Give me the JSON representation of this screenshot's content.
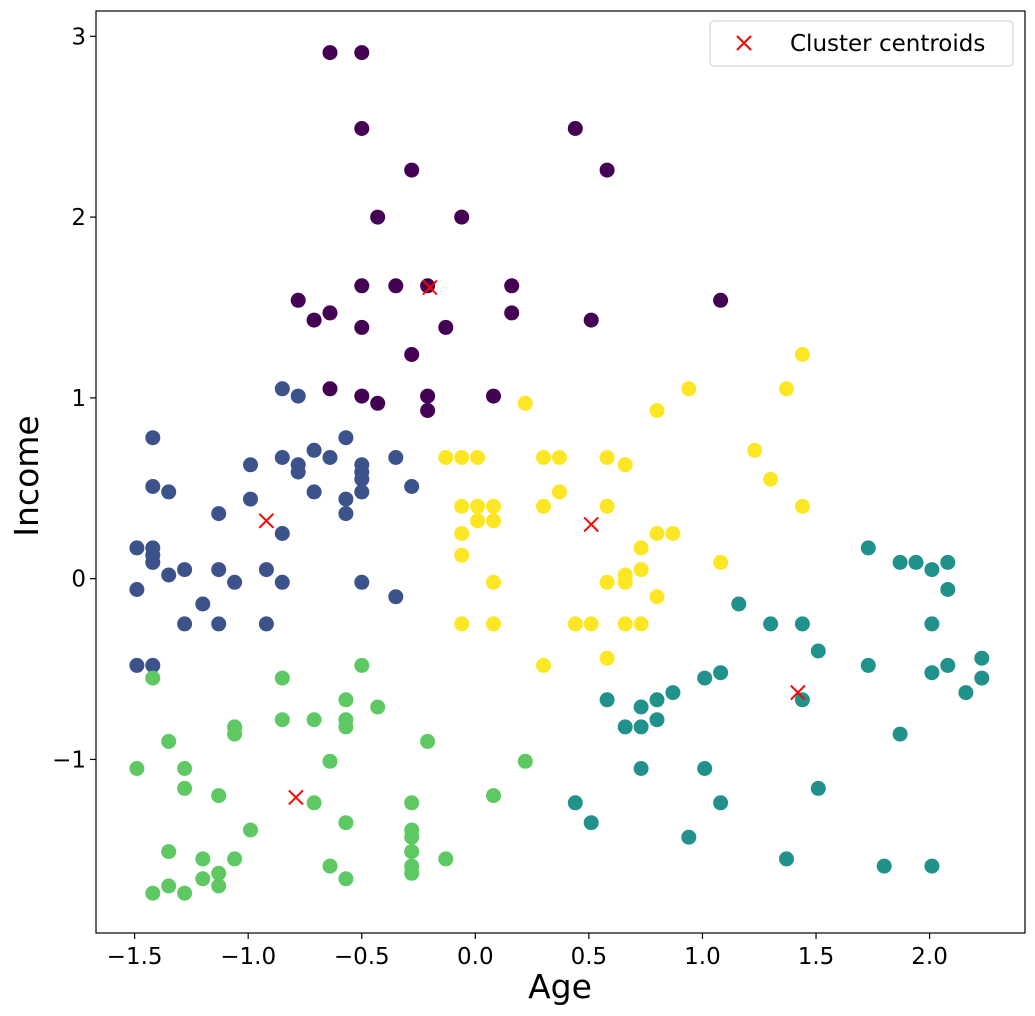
{
  "chart_data": {
    "type": "scatter",
    "title": "",
    "xlabel": "Age",
    "ylabel": "Income",
    "xlim": [
      -1.67,
      2.42
    ],
    "ylim": [
      -1.96,
      3.14
    ],
    "xticks": [
      -1.5,
      -1.0,
      -0.5,
      0.0,
      0.5,
      1.0,
      1.5,
      2.0
    ],
    "xtick_labels": [
      "−1.5",
      "−1.0",
      "−0.5",
      "0.0",
      "0.5",
      "1.0",
      "1.5",
      "2.0"
    ],
    "yticks": [
      -1,
      0,
      1,
      2,
      3
    ],
    "ytick_labels": [
      "−1",
      "0",
      "1",
      "2",
      "3"
    ],
    "grid": false,
    "legend": {
      "position": "top-right",
      "entries": [
        "Cluster centroids"
      ]
    },
    "series": [
      {
        "color": "#440154",
        "points": [
          [
            -0.64,
            2.91
          ],
          [
            -0.5,
            2.91
          ],
          [
            -0.5,
            2.49
          ],
          [
            0.44,
            2.49
          ],
          [
            -0.28,
            2.26
          ],
          [
            0.58,
            2.26
          ],
          [
            -0.43,
            2.0
          ],
          [
            -0.06,
            2.0
          ],
          [
            -0.5,
            1.62
          ],
          [
            -0.35,
            1.62
          ],
          [
            -0.21,
            1.62
          ],
          [
            0.16,
            1.62
          ],
          [
            -0.78,
            1.54
          ],
          [
            1.08,
            1.54
          ],
          [
            -0.64,
            1.47
          ],
          [
            0.16,
            1.47
          ],
          [
            -0.71,
            1.43
          ],
          [
            0.51,
            1.43
          ],
          [
            -0.5,
            1.39
          ],
          [
            -0.13,
            1.39
          ],
          [
            -0.28,
            1.24
          ],
          [
            -0.64,
            1.05
          ],
          [
            -0.5,
            1.01
          ],
          [
            -0.21,
            1.01
          ],
          [
            0.08,
            1.01
          ],
          [
            -0.43,
            0.97
          ],
          [
            -0.21,
            0.93
          ]
        ]
      },
      {
        "color": "#3b528b",
        "points": [
          [
            -0.85,
            1.05
          ],
          [
            -0.78,
            1.01
          ],
          [
            -1.42,
            0.78
          ],
          [
            -0.57,
            0.78
          ],
          [
            -0.71,
            0.71
          ],
          [
            -0.85,
            0.67
          ],
          [
            -0.64,
            0.67
          ],
          [
            -0.35,
            0.67
          ],
          [
            -0.99,
            0.63
          ],
          [
            -0.78,
            0.63
          ],
          [
            -0.5,
            0.63
          ],
          [
            -0.78,
            0.59
          ],
          [
            -0.5,
            0.59
          ],
          [
            -0.5,
            0.55
          ],
          [
            -1.42,
            0.51
          ],
          [
            -0.28,
            0.51
          ],
          [
            -1.35,
            0.48
          ],
          [
            -0.71,
            0.48
          ],
          [
            -0.5,
            0.48
          ],
          [
            -0.99,
            0.44
          ],
          [
            -0.57,
            0.44
          ],
          [
            -1.13,
            0.36
          ],
          [
            -0.57,
            0.36
          ],
          [
            -0.85,
            0.25
          ],
          [
            -1.49,
            0.17
          ],
          [
            -1.42,
            0.17
          ],
          [
            -1.42,
            0.13
          ],
          [
            -1.42,
            0.09
          ],
          [
            -1.28,
            0.05
          ],
          [
            -1.13,
            0.05
          ],
          [
            -0.92,
            0.05
          ],
          [
            -1.35,
            0.02
          ],
          [
            -1.06,
            -0.02
          ],
          [
            -0.85,
            -0.02
          ],
          [
            -0.5,
            -0.02
          ],
          [
            -1.49,
            -0.06
          ],
          [
            -0.35,
            -0.1
          ],
          [
            -1.2,
            -0.14
          ],
          [
            -1.28,
            -0.25
          ],
          [
            -1.13,
            -0.25
          ],
          [
            -0.92,
            -0.25
          ],
          [
            -1.49,
            -0.48
          ],
          [
            -1.42,
            -0.48
          ]
        ]
      },
      {
        "color": "#21918c",
        "points": [
          [
            1.73,
            0.17
          ],
          [
            1.87,
            0.09
          ],
          [
            1.94,
            0.09
          ],
          [
            2.08,
            0.09
          ],
          [
            2.01,
            0.05
          ],
          [
            2.08,
            -0.06
          ],
          [
            1.16,
            -0.14
          ],
          [
            1.3,
            -0.25
          ],
          [
            1.44,
            -0.25
          ],
          [
            2.01,
            -0.25
          ],
          [
            1.51,
            -0.4
          ],
          [
            2.23,
            -0.44
          ],
          [
            1.73,
            -0.48
          ],
          [
            2.08,
            -0.48
          ],
          [
            1.08,
            -0.52
          ],
          [
            2.01,
            -0.52
          ],
          [
            1.01,
            -0.55
          ],
          [
            2.23,
            -0.55
          ],
          [
            2.16,
            -0.63
          ],
          [
            0.87,
            -0.63
          ],
          [
            0.8,
            -0.67
          ],
          [
            0.58,
            -0.67
          ],
          [
            1.44,
            -0.67
          ],
          [
            0.73,
            -0.71
          ],
          [
            0.8,
            -0.78
          ],
          [
            0.66,
            -0.82
          ],
          [
            0.73,
            -0.82
          ],
          [
            1.87,
            -0.86
          ],
          [
            0.73,
            -1.05
          ],
          [
            1.01,
            -1.05
          ],
          [
            1.51,
            -1.16
          ],
          [
            0.44,
            -1.24
          ],
          [
            1.08,
            -1.24
          ],
          [
            0.51,
            -1.35
          ],
          [
            0.94,
            -1.43
          ],
          [
            1.37,
            -1.55
          ],
          [
            1.8,
            -1.59
          ],
          [
            2.01,
            -1.59
          ]
        ]
      },
      {
        "color": "#5ec962",
        "points": [
          [
            -0.5,
            -0.48
          ],
          [
            -1.42,
            -0.55
          ],
          [
            -0.85,
            -0.55
          ],
          [
            -0.57,
            -0.67
          ],
          [
            -0.43,
            -0.71
          ],
          [
            -0.85,
            -0.78
          ],
          [
            -0.71,
            -0.78
          ],
          [
            -0.57,
            -0.78
          ],
          [
            -1.06,
            -0.82
          ],
          [
            -0.57,
            -0.82
          ],
          [
            -1.06,
            -0.86
          ],
          [
            -1.35,
            -0.9
          ],
          [
            -0.21,
            -0.9
          ],
          [
            -0.64,
            -1.01
          ],
          [
            0.22,
            -1.01
          ],
          [
            -1.49,
            -1.05
          ],
          [
            -1.28,
            -1.05
          ],
          [
            -1.28,
            -1.16
          ],
          [
            -1.13,
            -1.2
          ],
          [
            0.08,
            -1.2
          ],
          [
            -0.71,
            -1.24
          ],
          [
            -0.28,
            -1.24
          ],
          [
            -0.57,
            -1.35
          ],
          [
            -0.99,
            -1.39
          ],
          [
            -0.28,
            -1.39
          ],
          [
            -0.28,
            -1.43
          ],
          [
            -1.35,
            -1.51
          ],
          [
            -0.28,
            -1.51
          ],
          [
            -1.2,
            -1.55
          ],
          [
            -1.06,
            -1.55
          ],
          [
            -0.13,
            -1.55
          ],
          [
            -0.64,
            -1.59
          ],
          [
            -0.28,
            -1.59
          ],
          [
            -1.13,
            -1.63
          ],
          [
            -0.28,
            -1.63
          ],
          [
            -1.2,
            -1.66
          ],
          [
            -0.57,
            -1.66
          ],
          [
            -1.35,
            -1.7
          ],
          [
            -1.13,
            -1.7
          ],
          [
            -1.42,
            -1.74
          ],
          [
            -1.28,
            -1.74
          ]
        ]
      },
      {
        "color": "#fde725",
        "points": [
          [
            1.44,
            1.24
          ],
          [
            0.94,
            1.05
          ],
          [
            1.37,
            1.05
          ],
          [
            0.22,
            0.97
          ],
          [
            0.8,
            0.93
          ],
          [
            1.23,
            0.71
          ],
          [
            -0.13,
            0.67
          ],
          [
            -0.06,
            0.67
          ],
          [
            0.01,
            0.67
          ],
          [
            0.3,
            0.67
          ],
          [
            0.37,
            0.67
          ],
          [
            0.58,
            0.67
          ],
          [
            0.66,
            0.63
          ],
          [
            1.3,
            0.55
          ],
          [
            0.37,
            0.48
          ],
          [
            -0.06,
            0.4
          ],
          [
            0.01,
            0.4
          ],
          [
            0.08,
            0.4
          ],
          [
            0.3,
            0.4
          ],
          [
            0.58,
            0.4
          ],
          [
            1.44,
            0.4
          ],
          [
            0.01,
            0.32
          ],
          [
            0.08,
            0.32
          ],
          [
            -0.06,
            0.25
          ],
          [
            0.8,
            0.25
          ],
          [
            0.87,
            0.25
          ],
          [
            0.73,
            0.17
          ],
          [
            -0.06,
            0.13
          ],
          [
            1.08,
            0.09
          ],
          [
            0.73,
            0.05
          ],
          [
            0.66,
            0.02
          ],
          [
            0.08,
            -0.02
          ],
          [
            0.58,
            -0.02
          ],
          [
            0.66,
            -0.02
          ],
          [
            0.8,
            -0.1
          ],
          [
            -0.06,
            -0.25
          ],
          [
            0.08,
            -0.25
          ],
          [
            0.44,
            -0.25
          ],
          [
            0.51,
            -0.25
          ],
          [
            0.66,
            -0.25
          ],
          [
            0.73,
            -0.25
          ],
          [
            0.58,
            -0.44
          ],
          [
            0.3,
            -0.48
          ]
        ]
      }
    ],
    "centroids": {
      "name": "Cluster centroids",
      "color": "#ff0000",
      "points": [
        [
          -0.2,
          1.61
        ],
        [
          -0.92,
          0.32
        ],
        [
          0.51,
          0.3
        ],
        [
          1.42,
          -0.63
        ],
        [
          -0.79,
          -1.21
        ]
      ]
    }
  }
}
